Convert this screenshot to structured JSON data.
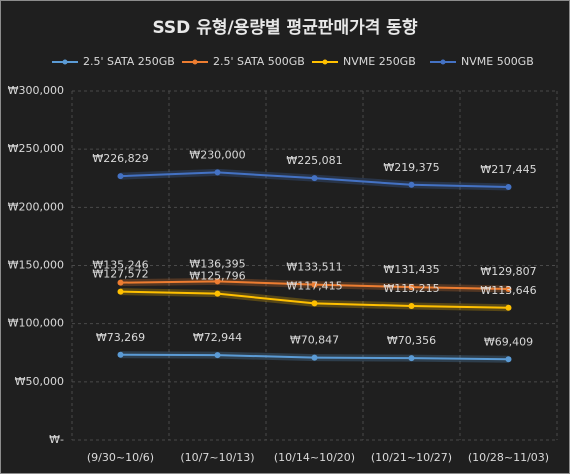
{
  "chart_data": {
    "type": "line",
    "title": "SSD 유형/용량별 평균판매가격 동향",
    "categories": [
      "(9/30~10/6)",
      "(10/7~10/13)",
      "(10/14~10/20)",
      "(10/21~10/27)",
      "(10/28~11/03)"
    ],
    "series": [
      {
        "name": "2.5' SATA 250GB",
        "color": "#5b9bd5",
        "values": [
          73269,
          72944,
          70847,
          70356,
          69409
        ],
        "value_labels": [
          "₩73,269",
          "₩72,944",
          "₩70,847",
          "₩70,356",
          "₩69,409"
        ]
      },
      {
        "name": "2.5' SATA 500GB",
        "color": "#ed7d31",
        "values": [
          135246,
          136395,
          133511,
          131435,
          129807
        ],
        "value_labels": [
          "₩135,246",
          "₩136,395",
          "₩133,511",
          "₩131,435",
          "₩129,807"
        ]
      },
      {
        "name": "NVME 250GB",
        "color": "#ffc000",
        "values": [
          127572,
          125796,
          117415,
          115215,
          113646
        ],
        "value_labels": [
          "₩127,572",
          "₩125,796",
          "₩117,415",
          "₩115,215",
          "₩113,646"
        ]
      },
      {
        "name": "NVME 500GB",
        "color": "#4472c4",
        "values": [
          226829,
          230000,
          225081,
          219375,
          217445
        ],
        "value_labels": [
          "₩226,829",
          "₩230,000",
          "₩225,081",
          "₩219,375",
          "₩217,445"
        ]
      }
    ],
    "ylim": [
      0,
      300000
    ],
    "yticks": [
      {
        "value": 0,
        "label": "₩-"
      },
      {
        "value": 50000,
        "label": "₩50,000"
      },
      {
        "value": 100000,
        "label": "₩100,000"
      },
      {
        "value": 150000,
        "label": "₩150,000"
      },
      {
        "value": 200000,
        "label": "₩200,000"
      },
      {
        "value": 250000,
        "label": "₩250,000"
      },
      {
        "value": 300000,
        "label": "₩300,000"
      }
    ],
    "grid": true,
    "legend": "top"
  }
}
